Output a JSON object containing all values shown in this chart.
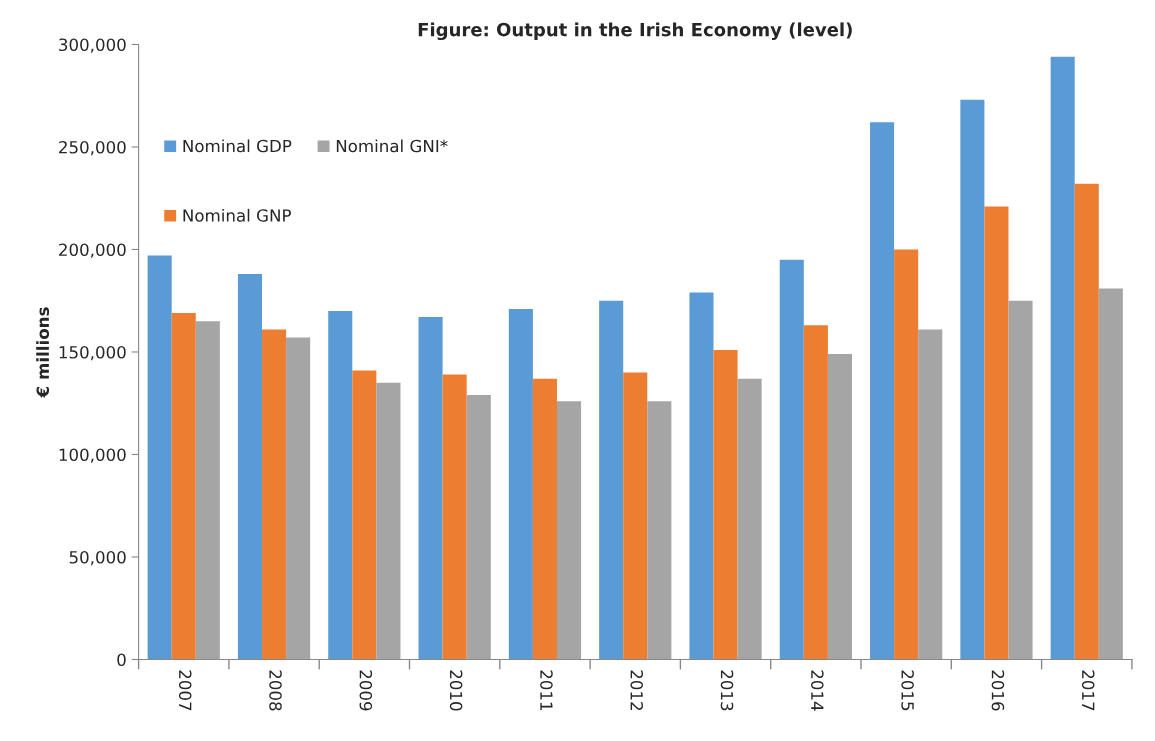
{
  "chart_data": {
    "type": "bar",
    "title": "Figure: Output in the Irish Economy (level)",
    "ylabel": "€ millions",
    "categories": [
      "2007",
      "2008",
      "2009",
      "2010",
      "2011",
      "2012",
      "2013",
      "2014",
      "2015",
      "2016",
      "2017"
    ],
    "series": [
      {
        "name": "Nominal GDP",
        "color": "#5b9bd5",
        "values": [
          197000,
          188000,
          170000,
          167000,
          171000,
          175000,
          179000,
          195000,
          262000,
          273000,
          294000
        ]
      },
      {
        "name": "Nominal GNP",
        "color": "#ed7d31",
        "values": [
          169000,
          161000,
          141000,
          139000,
          137000,
          140000,
          151000,
          163000,
          200000,
          221000,
          232000
        ]
      },
      {
        "name": "Nominal GNI*",
        "color": "#a5a5a5",
        "values": [
          165000,
          157000,
          135000,
          129000,
          126000,
          126000,
          137000,
          149000,
          161000,
          175000,
          181000
        ]
      }
    ],
    "ylim": [
      0,
      300000
    ],
    "yticks": [
      {
        "value": 0,
        "label": "0"
      },
      {
        "value": 50000,
        "label": "50,000"
      },
      {
        "value": 100000,
        "label": "100,000"
      },
      {
        "value": 150000,
        "label": "150,000"
      },
      {
        "value": 200000,
        "label": "200,000"
      },
      {
        "value": 250000,
        "label": "250,000"
      },
      {
        "value": 300000,
        "label": "300,000"
      }
    ],
    "grid": false,
    "legend": "top left"
  }
}
